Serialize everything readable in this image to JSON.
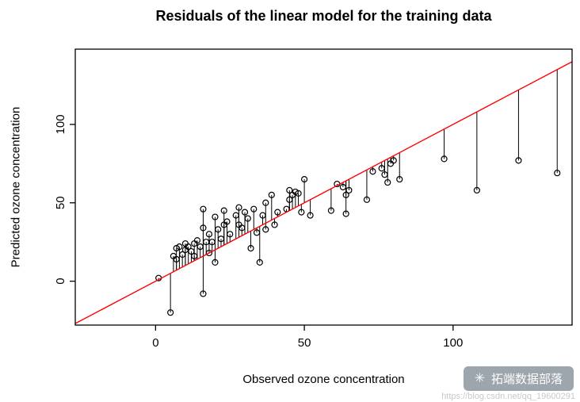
{
  "title": "Residuals of the linear model for the training data",
  "watermark": {
    "badge_text": "拓端数据部落",
    "url_text": "https://blog.csdn.net/qq_19600291"
  },
  "chart_data": {
    "type": "scatter",
    "title": "Residuals of the linear model for the training data",
    "xlabel": "Observed ozone concentration",
    "ylabel": "Predicted ozone concentration",
    "xlim": [
      -27,
      140
    ],
    "ylim": [
      -28,
      148
    ],
    "x_ticks": [
      0,
      50,
      100
    ],
    "y_ticks": [
      0,
      50,
      100
    ],
    "grid": false,
    "legend": "none",
    "identity_line": {
      "equation": "y = x",
      "color": "#ff0000"
    },
    "residual_segments_to_identity_line": true,
    "point_style": {
      "marker": "open-circle",
      "stroke": "#000000",
      "radius": 3.5
    },
    "points": [
      [
        1,
        2
      ],
      [
        5,
        -20
      ],
      [
        6,
        16
      ],
      [
        7,
        21
      ],
      [
        7,
        14
      ],
      [
        8,
        22
      ],
      [
        9,
        17
      ],
      [
        10,
        24
      ],
      [
        10,
        20
      ],
      [
        11,
        22
      ],
      [
        12,
        19
      ],
      [
        13,
        24
      ],
      [
        13,
        16
      ],
      [
        14,
        26
      ],
      [
        15,
        22
      ],
      [
        16,
        -8
      ],
      [
        16,
        34
      ],
      [
        16,
        46
      ],
      [
        17,
        25
      ],
      [
        18,
        30
      ],
      [
        18,
        18
      ],
      [
        19,
        25
      ],
      [
        20,
        41
      ],
      [
        20,
        12
      ],
      [
        21,
        33
      ],
      [
        22,
        27
      ],
      [
        23,
        45
      ],
      [
        23,
        36
      ],
      [
        24,
        38
      ],
      [
        25,
        30
      ],
      [
        27,
        42
      ],
      [
        28,
        36
      ],
      [
        28,
        47
      ],
      [
        29,
        34
      ],
      [
        30,
        44
      ],
      [
        31,
        40
      ],
      [
        32,
        21
      ],
      [
        33,
        46
      ],
      [
        34,
        31
      ],
      [
        35,
        12
      ],
      [
        36,
        42
      ],
      [
        37,
        50
      ],
      [
        37,
        33
      ],
      [
        39,
        55
      ],
      [
        40,
        36
      ],
      [
        41,
        44
      ],
      [
        44,
        46
      ],
      [
        45,
        52
      ],
      [
        45,
        58
      ],
      [
        46,
        55
      ],
      [
        47,
        57
      ],
      [
        48,
        56
      ],
      [
        49,
        44
      ],
      [
        50,
        65
      ],
      [
        52,
        42
      ],
      [
        59,
        45
      ],
      [
        61,
        62
      ],
      [
        63,
        60
      ],
      [
        64,
        43
      ],
      [
        64,
        55
      ],
      [
        65,
        58
      ],
      [
        71,
        52
      ],
      [
        73,
        70
      ],
      [
        76,
        72
      ],
      [
        77,
        68
      ],
      [
        78,
        63
      ],
      [
        79,
        75
      ],
      [
        80,
        77
      ],
      [
        82,
        65
      ],
      [
        97,
        78
      ],
      [
        108,
        58
      ],
      [
        122,
        77
      ],
      [
        135,
        69
      ]
    ]
  }
}
